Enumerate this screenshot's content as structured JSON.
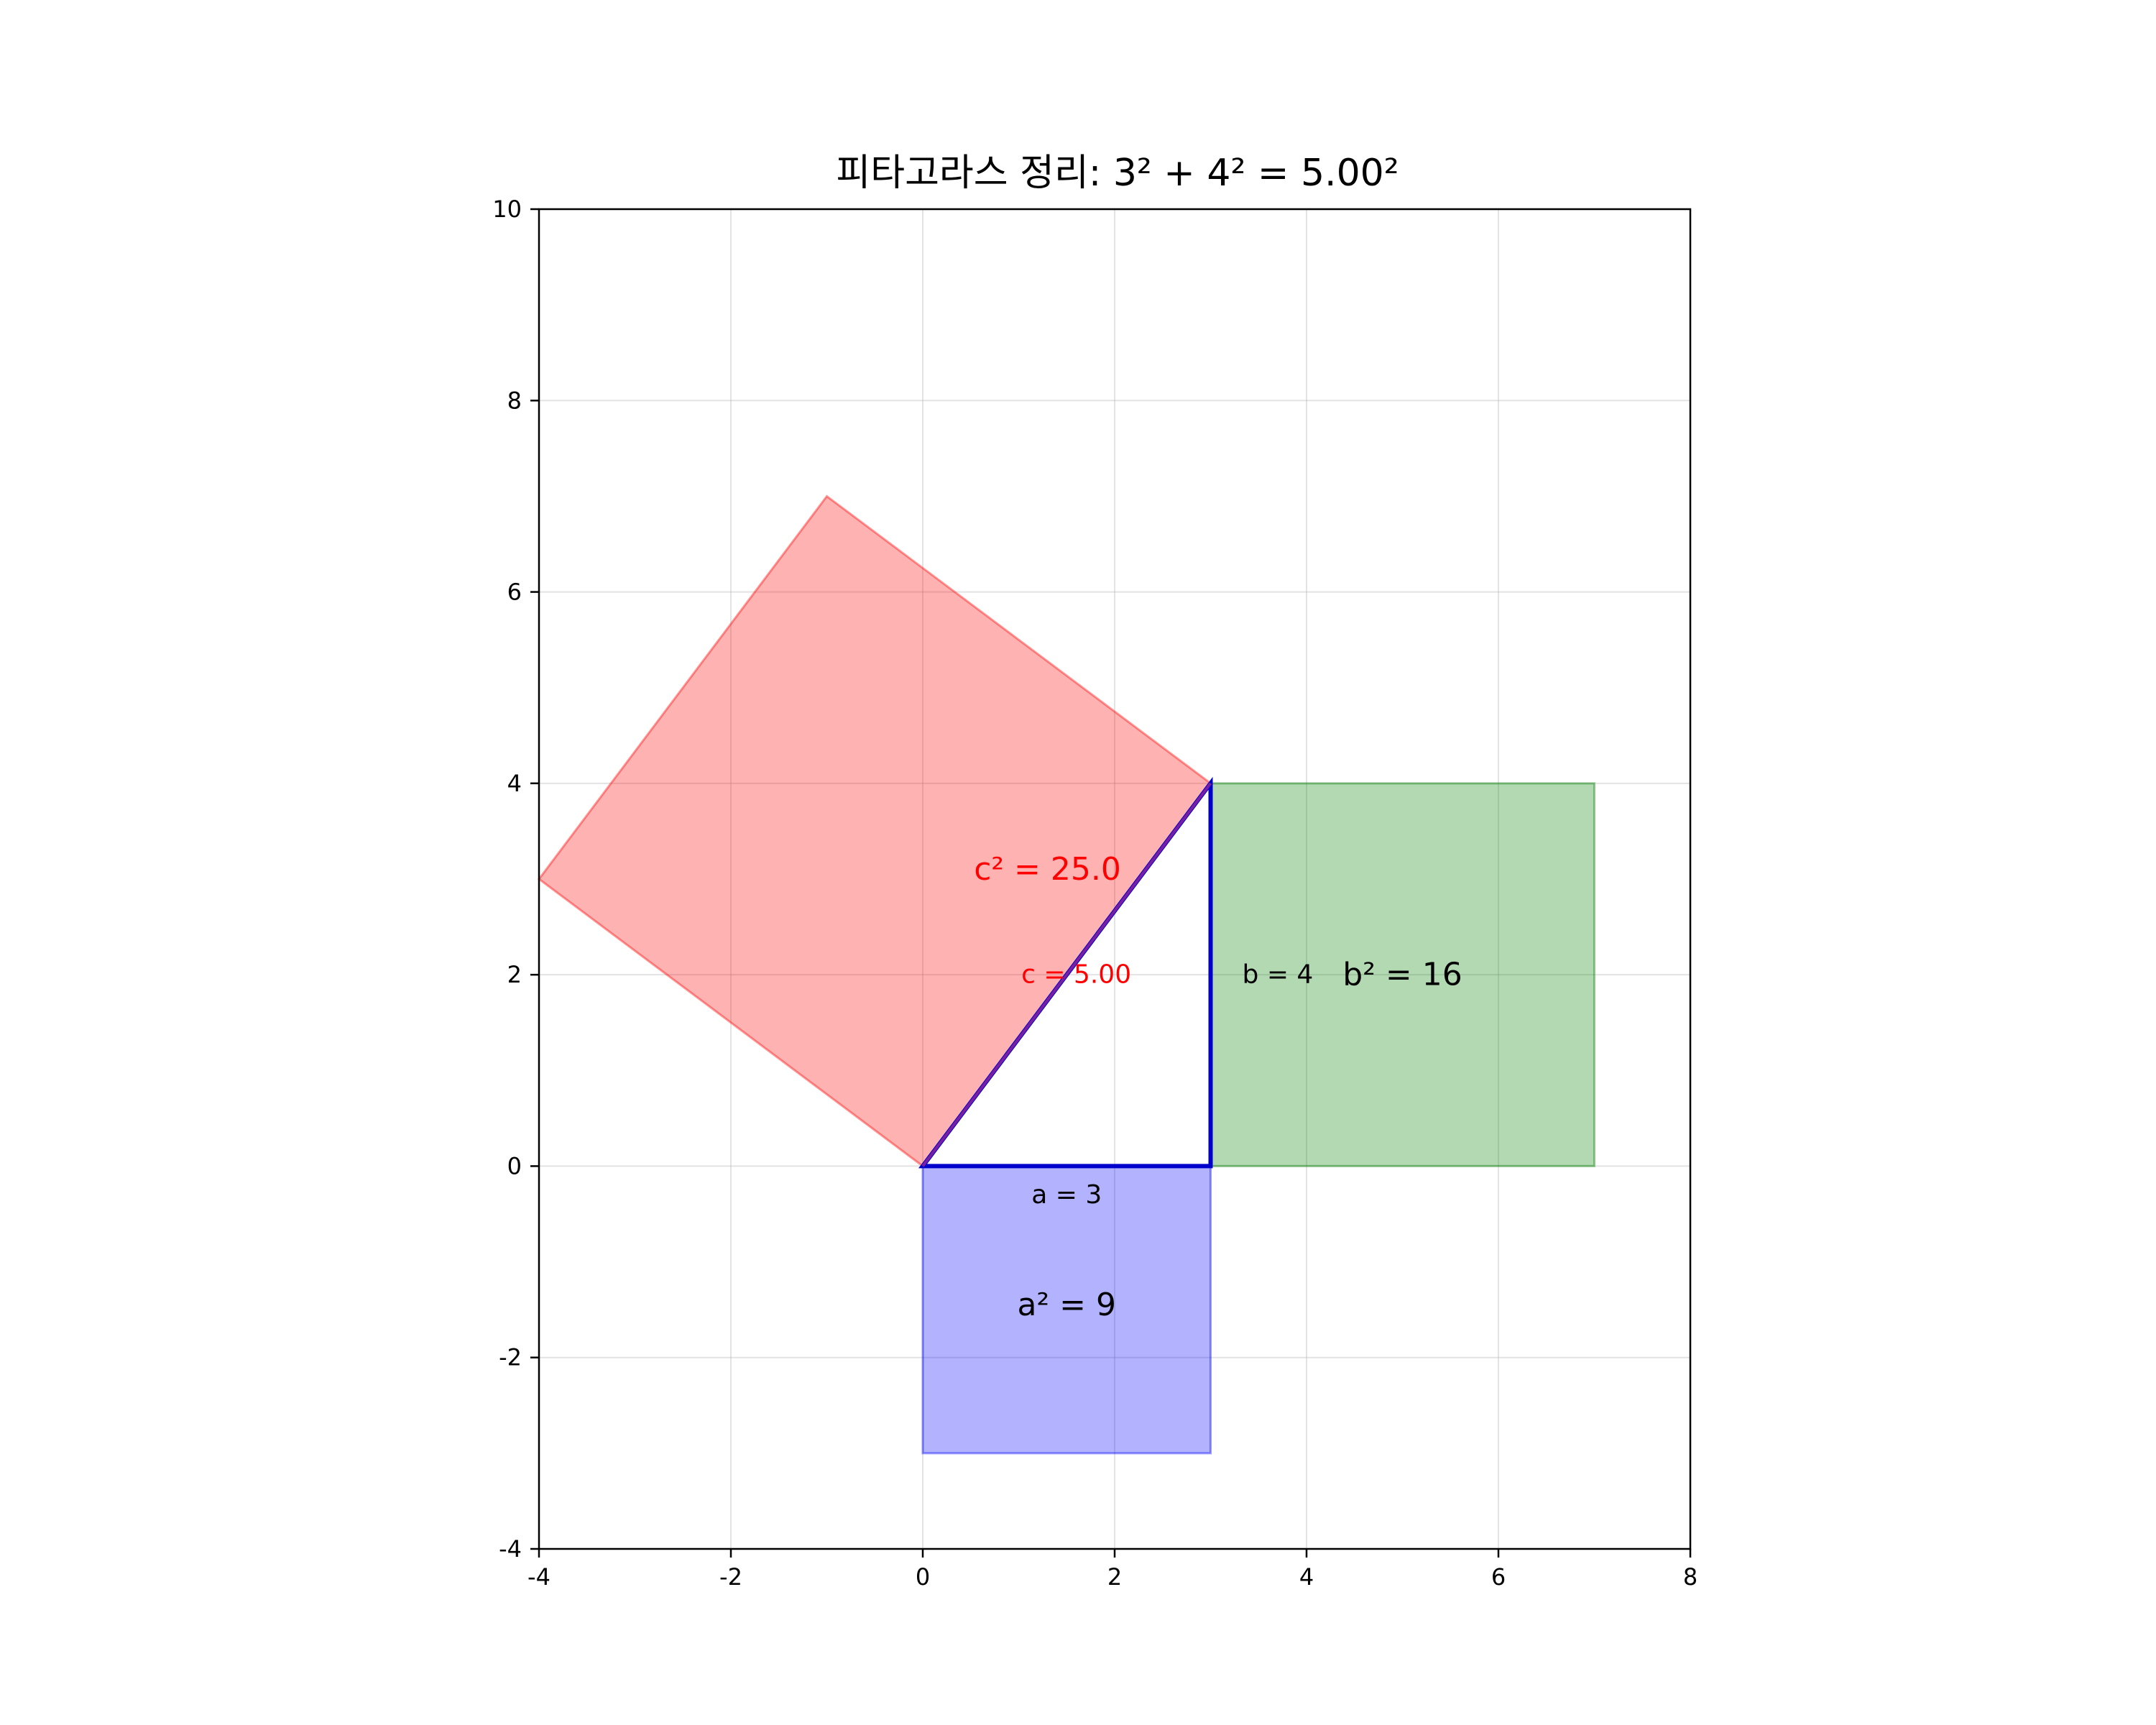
{
  "chart_data": {
    "type": "diagram-plot",
    "title": "피타고라스 정리: 3² + 4² = 5.00²",
    "xlim": [
      -4,
      8
    ],
    "ylim": [
      -4,
      10
    ],
    "x_ticks": [
      {
        "value": -4,
        "label": "-4"
      },
      {
        "value": -2,
        "label": "-2"
      },
      {
        "value": 0,
        "label": "0"
      },
      {
        "value": 2,
        "label": "2"
      },
      {
        "value": 4,
        "label": "4"
      },
      {
        "value": 6,
        "label": "6"
      },
      {
        "value": 8,
        "label": "8"
      }
    ],
    "y_ticks": [
      {
        "value": -4,
        "label": "-4"
      },
      {
        "value": -2,
        "label": "-2"
      },
      {
        "value": 0,
        "label": "0"
      },
      {
        "value": 2,
        "label": "2"
      },
      {
        "value": 4,
        "label": "4"
      },
      {
        "value": 6,
        "label": "6"
      },
      {
        "value": 8,
        "label": "8"
      },
      {
        "value": 10,
        "label": "10"
      }
    ],
    "grid": true,
    "shapes": [
      {
        "id": "square-c",
        "points": [
          [
            0,
            0
          ],
          [
            3,
            4
          ],
          [
            -1,
            7
          ],
          [
            -4,
            3
          ]
        ],
        "fill": "#ff0000",
        "fill_opacity": 0.3
      },
      {
        "id": "square-b",
        "points": [
          [
            3,
            0
          ],
          [
            7,
            0
          ],
          [
            7,
            4
          ],
          [
            3,
            4
          ]
        ],
        "fill": "#008000",
        "fill_opacity": 0.3
      },
      {
        "id": "square-a",
        "points": [
          [
            0,
            0
          ],
          [
            3,
            0
          ],
          [
            3,
            -3
          ],
          [
            0,
            -3
          ]
        ],
        "fill": "#0000ff",
        "fill_opacity": 0.3
      }
    ],
    "triangle": {
      "points": [
        [
          0,
          0
        ],
        [
          3,
          0
        ],
        [
          3,
          4
        ]
      ],
      "color": "#0000cc"
    },
    "hypotenuse_overlay": {
      "points": [
        [
          0,
          0
        ],
        [
          3,
          4
        ]
      ],
      "color": "#7a1fa0"
    },
    "annotations": [
      {
        "id": "c-squared",
        "text": "c² = 25.0",
        "x": 1.3,
        "y": 3.1,
        "color": "#ff0000",
        "size": "big"
      },
      {
        "id": "c-side",
        "text": "c = 5.00",
        "x": 1.6,
        "y": 2.0,
        "color": "#ff0000",
        "size": "small"
      },
      {
        "id": "b-side",
        "text": "b = 4",
        "x": 3.7,
        "y": 2.0,
        "color": "#000000",
        "size": "small"
      },
      {
        "id": "b-squared",
        "text": "b² = 16",
        "x": 5.0,
        "y": 2.0,
        "color": "#000000",
        "size": "big"
      },
      {
        "id": "a-side",
        "text": "a = 3",
        "x": 1.5,
        "y": -0.3,
        "color": "#000000",
        "size": "small"
      },
      {
        "id": "a-squared",
        "text": "a² = 9",
        "x": 1.5,
        "y": -1.45,
        "color": "#000000",
        "size": "big"
      }
    ]
  }
}
